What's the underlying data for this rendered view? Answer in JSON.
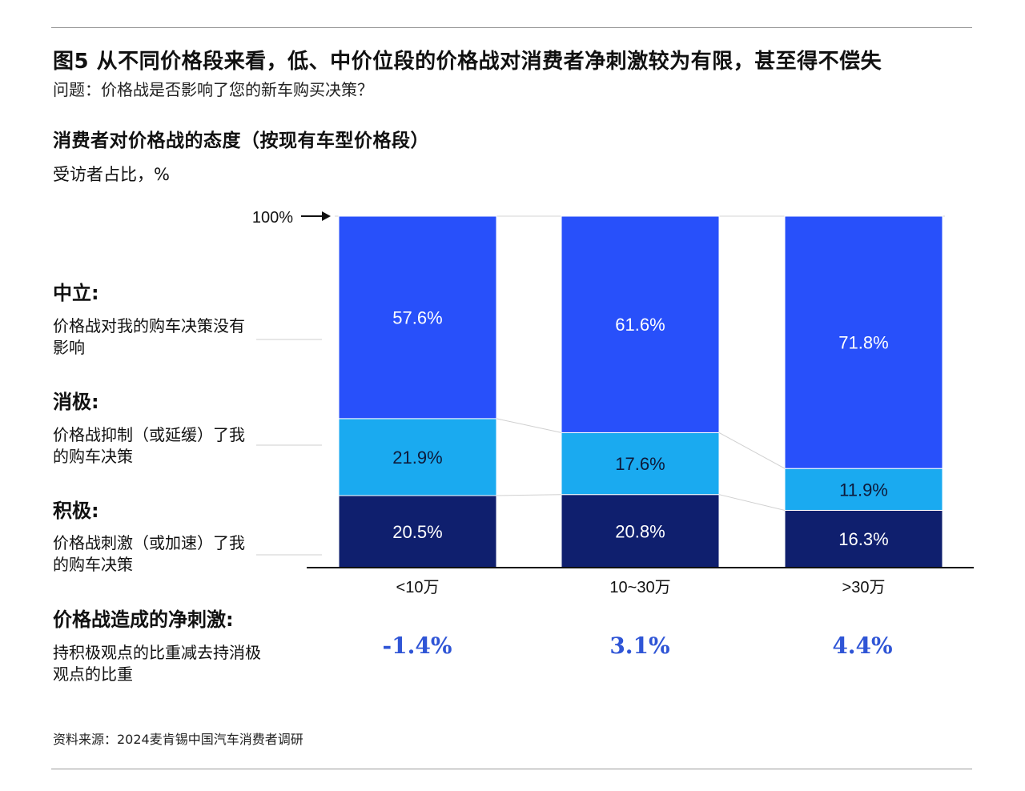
{
  "figure": {
    "title": "图5 从不同价格段来看，低、中价位段的价格战对消费者净刺激较为有限，甚至得不偿失",
    "question": "问题：价格战是否影响了您的新车购买决策？"
  },
  "chart_title": "消费者对价格战的态度（按现有车型价格段）",
  "unit_label": "受访者占比，%",
  "hundred_label": "100%",
  "legend": [
    {
      "head": "中立:",
      "desc": "价格战对我的购车决策没有影响"
    },
    {
      "head": "消极:",
      "desc": "价格战抑制（或延缓）了我的购车决策"
    },
    {
      "head": "积极:",
      "desc": "价格战刺激（或加速）了我的购车决策"
    }
  ],
  "net": {
    "head": "价格战造成的净刺激:",
    "desc": "持积极观点的比重减去持消极观点的比重",
    "values": [
      "-1.4%",
      "3.1%",
      "4.4%"
    ]
  },
  "source": "资料来源：2024麦肯锡中国汽车消费者调研",
  "colors": {
    "neutral": "#2850fa",
    "negative": "#1aaaf0",
    "positive": "#0f1f6e",
    "net_value": "#2f55d6"
  },
  "chart_data": {
    "type": "bar",
    "stacked": true,
    "categories": [
      "<10万",
      "10~30万",
      ">30万"
    ],
    "ylim": [
      0,
      100
    ],
    "series": [
      {
        "key": "positive",
        "values": [
          20.5,
          20.8,
          16.3
        ],
        "labels": [
          "20.5%",
          "20.8%",
          "16.3%"
        ]
      },
      {
        "key": "negative",
        "values": [
          21.9,
          17.6,
          11.9
        ],
        "labels": [
          "21.9%",
          "17.6%",
          "11.9%"
        ]
      },
      {
        "key": "neutral",
        "values": [
          57.6,
          61.6,
          71.8
        ],
        "labels": [
          "57.6%",
          "61.6%",
          "71.8%"
        ]
      }
    ]
  }
}
